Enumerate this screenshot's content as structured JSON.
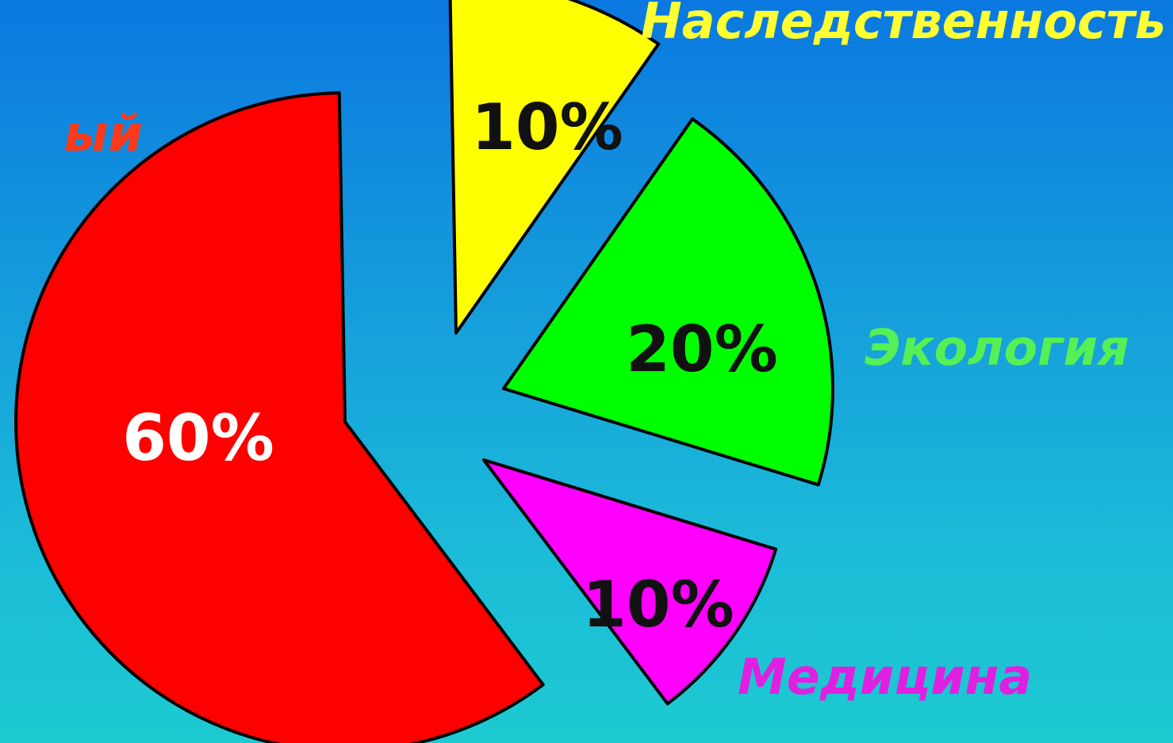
{
  "chart_data": {
    "type": "pie",
    "title": "",
    "start_angle": -91,
    "slices": [
      {
        "category": "Наследственность",
        "value": 10,
        "value_label": "10%",
        "color": "#ffff00",
        "label_color": "#ffff33",
        "value_label_color": "#111111"
      },
      {
        "category": "Экология",
        "value": 20,
        "value_label": "20%",
        "color": "#00ff00",
        "label_color": "#55f055",
        "value_label_color": "#111111"
      },
      {
        "category": "Медицина",
        "value": 10,
        "value_label": "10%",
        "color": "#ff00ff",
        "label_color": "#e020e0",
        "value_label_color": "#111111"
      },
      {
        "category": "ый",
        "value": 60,
        "value_label": "60%",
        "color": "#ff0000",
        "label_color": "#ff3a1a",
        "value_label_color": "#ffffff"
      }
    ]
  }
}
